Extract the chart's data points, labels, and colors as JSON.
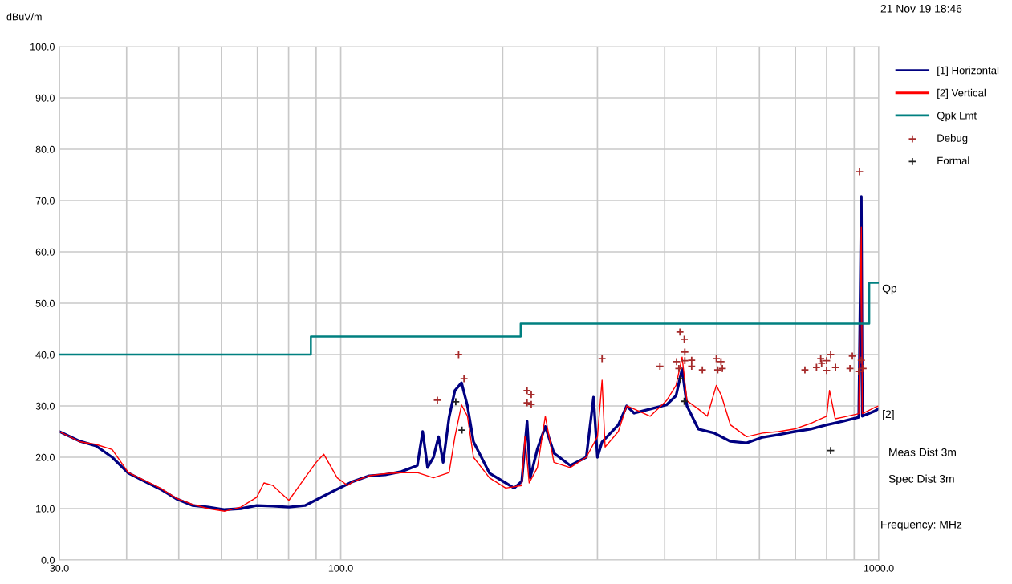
{
  "chart_data": {
    "type": "line",
    "ylabel": "dBuV/m",
    "log": "x",
    "grid": true,
    "legend": "right",
    "xlim": [
      30,
      1000
    ],
    "ylim": [
      0,
      100
    ],
    "xticks": [
      {
        "value": 30,
        "label": "30.0"
      },
      {
        "value": 40,
        "label": null
      },
      {
        "value": 50,
        "label": null
      },
      {
        "value": 60,
        "label": null
      },
      {
        "value": 70,
        "label": null
      },
      {
        "value": 80,
        "label": null
      },
      {
        "value": 90,
        "label": null
      },
      {
        "value": 100,
        "label": "100.0"
      },
      {
        "value": 200,
        "label": null
      },
      {
        "value": 300,
        "label": null
      },
      {
        "value": 400,
        "label": null
      },
      {
        "value": 500,
        "label": null
      },
      {
        "value": 600,
        "label": null
      },
      {
        "value": 700,
        "label": null
      },
      {
        "value": 800,
        "label": null
      },
      {
        "value": 900,
        "label": null
      },
      {
        "value": 1000,
        "label": "1000.0"
      }
    ],
    "yticks": [
      {
        "value": 0,
        "label": "0.0"
      },
      {
        "value": 10,
        "label": "10.0"
      },
      {
        "value": 20,
        "label": "20.0"
      },
      {
        "value": 30,
        "label": "30.0"
      },
      {
        "value": 40,
        "label": "40.0"
      },
      {
        "value": 50,
        "label": "50.0"
      },
      {
        "value": 60,
        "label": "60.0"
      },
      {
        "value": 70,
        "label": "70.0"
      },
      {
        "value": 80,
        "label": "80.0"
      },
      {
        "value": 90,
        "label": "90.0"
      },
      {
        "value": 100,
        "label": "100.0"
      }
    ],
    "series": [
      {
        "name": "[1] Horizontal",
        "color": "#000080",
        "x": [
          30,
          32.8,
          35.1,
          37.6,
          40.3,
          43.2,
          46.2,
          49.5,
          53.1,
          56.8,
          60.9,
          65.2,
          69.8,
          74.8,
          80.1,
          85.8,
          91.9,
          98.5,
          105.5,
          113,
          121,
          129.6,
          138.8,
          142,
          145,
          148.7,
          152,
          155,
          159,
          163,
          167.7,
          172,
          176.5,
          189,
          202.6,
          210,
          217,
          222,
          225,
          232,
          240,
          249,
          267,
          286,
          295,
          300,
          306,
          328,
          340,
          351,
          376,
          403,
          420,
          431,
          440,
          462,
          495,
          530,
          568,
          608,
          651,
          697,
          747,
          800,
          857,
          918,
          928,
          932,
          983,
          1000
        ],
        "values": [
          25,
          23.1,
          22.2,
          20,
          16.9,
          15.3,
          13.8,
          11.9,
          10.6,
          10.3,
          9.8,
          10,
          10.6,
          10.5,
          10.3,
          10.6,
          12.2,
          13.8,
          15.3,
          16.4,
          16.6,
          17.2,
          18.4,
          25,
          18,
          20,
          24,
          19,
          27.8,
          33,
          34.5,
          30,
          23,
          16.9,
          15,
          14,
          15.3,
          27,
          16,
          21.6,
          26,
          20.8,
          18.4,
          20,
          31.7,
          20,
          23,
          26.3,
          30,
          28.6,
          29.4,
          30.2,
          32,
          37.2,
          30,
          25.5,
          24.7,
          23.1,
          22.8,
          23.9,
          24.4,
          25,
          25.5,
          26.3,
          27,
          27.8,
          70.8,
          28,
          29,
          29.5
        ]
      },
      {
        "name": "[2] Vertical",
        "color": "#ff0000",
        "x": [
          30,
          32.8,
          35.1,
          37.6,
          40.3,
          43.2,
          46.2,
          49.5,
          53.1,
          56.8,
          60.9,
          65.2,
          69.8,
          72,
          74.8,
          80.1,
          85.8,
          90,
          93,
          98.5,
          103,
          105.5,
          113,
          121,
          129.6,
          138.8,
          148.7,
          159,
          163,
          167.7,
          172,
          176.5,
          189,
          202.6,
          217,
          220,
          224,
          232,
          240,
          249,
          267,
          286,
          300,
          306,
          310,
          328,
          340,
          351,
          376,
          403,
          420,
          431,
          440,
          462,
          480,
          499,
          510,
          530,
          568,
          608,
          651,
          697,
          747,
          800,
          810,
          830,
          857,
          918,
          928,
          932,
          983,
          1000
        ],
        "values": [
          25,
          23,
          22.5,
          21.5,
          17,
          15.5,
          14,
          12,
          10.8,
          10,
          9.5,
          10.3,
          12.2,
          15,
          14.5,
          11.6,
          16,
          19,
          20.6,
          16,
          14.5,
          15.3,
          16.4,
          16.8,
          17,
          17,
          16,
          17,
          24,
          30.2,
          28,
          20,
          16,
          14,
          14.5,
          24,
          15,
          18,
          28,
          19,
          18,
          20,
          24,
          35,
          22,
          25,
          30,
          29.4,
          28,
          31,
          34,
          39.5,
          31,
          29.4,
          28,
          34,
          32,
          26.3,
          24,
          24.7,
          25,
          25.5,
          26.6,
          28,
          33,
          27.5,
          27.8,
          28.5,
          64.8,
          28.5,
          29.7,
          30
        ]
      },
      {
        "name": "Qpk Lmt",
        "type": "step",
        "color": "#008080",
        "x": [
          30,
          88,
          216,
          960,
          1000
        ],
        "values": [
          40,
          43.5,
          46,
          54,
          54
        ]
      },
      {
        "name": "Debug",
        "type": "scatter",
        "color": "#a52a2a",
        "marker": "cross",
        "x": [
          151.2,
          165.6,
          169.5,
          222,
          226,
          222,
          226,
          306,
          392,
          427,
          435,
          436,
          421,
          425,
          436,
          449,
          449,
          470,
          499,
          509,
          502,
          512,
          729,
          766,
          780,
          783,
          800,
          800,
          814,
          831,
          893,
          884,
          918,
          928,
          935,
          921
        ],
        "values": [
          31.1,
          40,
          35.3,
          33,
          32.2,
          30.6,
          30.3,
          39.2,
          37.7,
          44.4,
          43,
          40.5,
          38.6,
          37.3,
          38.8,
          38.9,
          37.7,
          37,
          39.2,
          38.6,
          37,
          37.3,
          37,
          37.5,
          39.2,
          38.3,
          38.8,
          36.9,
          40,
          37.5,
          39.7,
          37.3,
          36.7,
          38.9,
          37.3,
          75.6
        ]
      },
      {
        "name": "Formal",
        "type": "scatter",
        "color": "#202020",
        "marker": "cross",
        "x": [
          163.6,
          168,
          428,
          435,
          814
        ],
        "values": [
          30.8,
          25.3,
          35.3,
          30.9,
          21.3
        ]
      }
    ],
    "annotations": [
      "21 Nov 19 18:46",
      {
        "text": "Qp",
        "x": 1000,
        "y": 54
      },
      {
        "text": "[2]",
        "x": 1000,
        "y": 29.5
      },
      "Meas Dist 3m",
      "Spec Dist 3m",
      "Frequency: MHz"
    ]
  }
}
